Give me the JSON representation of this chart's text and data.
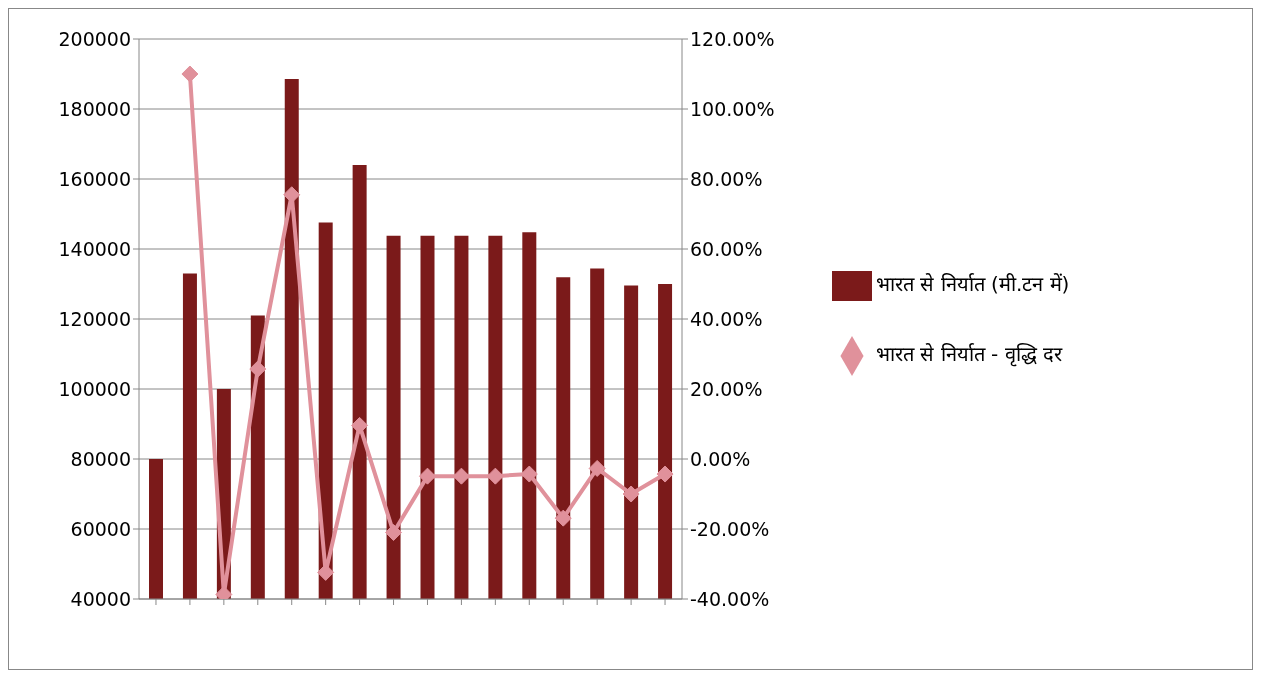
{
  "chart_data": {
    "type": "bar",
    "categories": [
      null,
      null,
      null,
      null,
      null,
      null,
      null,
      null,
      null,
      null,
      null,
      null,
      null,
      null,
      null,
      null
    ],
    "series": [
      {
        "name": "भारत से निर्यात (मी.टन में)",
        "color": "#7b1a1a",
        "values": [
          80000,
          133000,
          100000,
          121000,
          188600,
          147600,
          164000,
          143800,
          143800,
          143800,
          143800,
          144800,
          131900,
          134400,
          129600,
          130000
        ]
      },
      {
        "name": "भारत से निर्यात - वृद्धि दर",
        "type": "line",
        "axis": "y2",
        "color": "#e0919b",
        "marker": "diamond",
        "values": [
          null,
          110,
          -38.7,
          25.7,
          75.5,
          -32.4,
          9.6,
          -21,
          -4.9,
          -4.9,
          -4.9,
          -4.3,
          -16.9,
          -2.7,
          -10,
          -4.3
        ]
      }
    ],
    "ylim": [
      40000,
      200000
    ],
    "yticks": [
      40000,
      60000,
      80000,
      100000,
      120000,
      140000,
      160000,
      180000,
      200000
    ],
    "y2lim": [
      -40,
      120
    ],
    "y2ticks": [
      {
        "value": -40,
        "label": "-40.00%"
      },
      {
        "value": -20,
        "label": "-20.00%"
      },
      {
        "value": 0,
        "label": "0.00%"
      },
      {
        "value": 20,
        "label": "20.00%"
      },
      {
        "value": 40,
        "label": "40.00%"
      },
      {
        "value": 60,
        "label": "60.00%"
      },
      {
        "value": 80,
        "label": "80.00%"
      },
      {
        "value": 100,
        "label": "100.00%"
      },
      {
        "value": 120,
        "label": "120.00%"
      }
    ],
    "grid": "y",
    "legend": "right"
  }
}
